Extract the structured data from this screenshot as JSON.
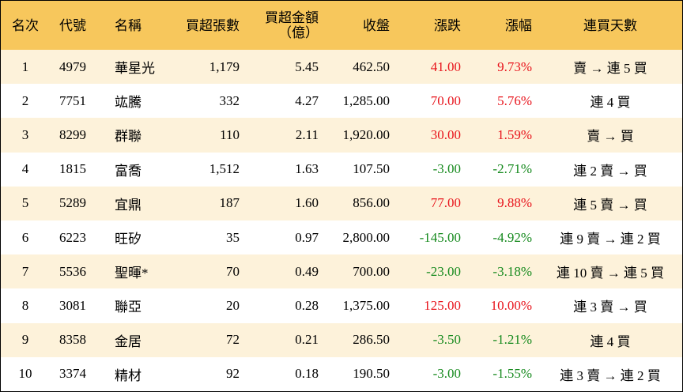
{
  "table": {
    "header": [
      "名次",
      "代號",
      "名稱",
      "買超張數",
      [
        "買超金額",
        "（億）"
      ],
      "收盤",
      "漲跌",
      "漲幅",
      "連買天數"
    ],
    "up_color": "#e8141c",
    "down_color": "#168a1e",
    "header_color": "#f7c75c",
    "stripe_color": "#fdf2da",
    "rows": [
      [
        "1",
        "4979",
        "華星光",
        "1,179",
        "5.45",
        "462.50",
        "41.00",
        "9.73%",
        "賣 → 連 5 買"
      ],
      [
        "2",
        "7751",
        "竑騰",
        "332",
        "4.27",
        "1,285.00",
        "70.00",
        "5.76%",
        "連 4 買"
      ],
      [
        "3",
        "8299",
        "群聯",
        "110",
        "2.11",
        "1,920.00",
        "30.00",
        "1.59%",
        "賣 → 買"
      ],
      [
        "4",
        "1815",
        "富喬",
        "1,512",
        "1.63",
        "107.50",
        "-3.00",
        "-2.71%",
        "連 2 賣 → 買"
      ],
      [
        "5",
        "5289",
        "宜鼎",
        "187",
        "1.60",
        "856.00",
        "77.00",
        "9.88%",
        "連 5 賣 → 買"
      ],
      [
        "6",
        "6223",
        "旺矽",
        "35",
        "0.97",
        "2,800.00",
        "-145.00",
        "-4.92%",
        "連 9 賣 → 連 2 買"
      ],
      [
        "7",
        "5536",
        "聖暉*",
        "70",
        "0.49",
        "700.00",
        "-23.00",
        "-3.18%",
        "連 10 賣 → 連 5 買"
      ],
      [
        "8",
        "3081",
        "聯亞",
        "20",
        "0.28",
        "1,375.00",
        "125.00",
        "10.00%",
        "連 3 賣 → 買"
      ],
      [
        "9",
        "8358",
        "金居",
        "72",
        "0.21",
        "286.50",
        "-3.50",
        "-1.21%",
        "連 4 買"
      ],
      [
        "10",
        "3374",
        "精材",
        "92",
        "0.18",
        "190.50",
        "-3.00",
        "-1.55%",
        "連 3 賣 → 連 2 買"
      ]
    ]
  }
}
